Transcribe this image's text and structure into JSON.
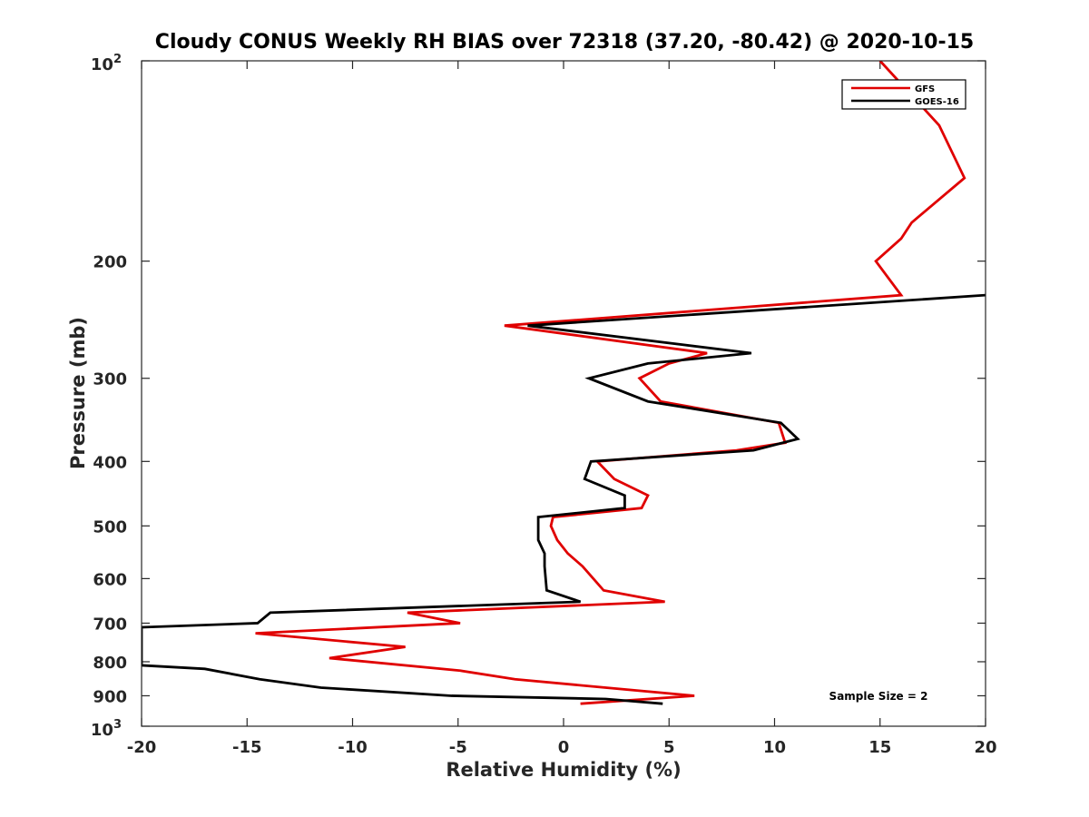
{
  "chart_data": {
    "type": "line",
    "title": "Cloudy CONUS Weekly RH BIAS over 72318 (37.20, -80.42) @ 2020-10-15",
    "xlabel": "Relative Humidity (%)",
    "ylabel": "Pressure (mb)",
    "xlim": [
      -20,
      20
    ],
    "ylim": [
      100,
      1000
    ],
    "yscale": "log",
    "y_reversed": true,
    "x_ticks": [
      -20,
      -15,
      -10,
      -5,
      0,
      5,
      10,
      15,
      20
    ],
    "x_tick_labels": [
      "-20",
      "-15",
      "-10",
      "-5",
      "0",
      "5",
      "10",
      "15",
      "20"
    ],
    "y_ticks": [
      200,
      300,
      400,
      500,
      600,
      700,
      800,
      900
    ],
    "y_tick_labels": [
      "200",
      "300",
      "400",
      "500",
      "600",
      "700",
      "800",
      "900"
    ],
    "y_top_label": {
      "base": "10",
      "exp": "2"
    },
    "y_bottom_label": {
      "base": "10",
      "exp": "3"
    },
    "legend_position": "top-right",
    "annotation": "Sample Size = 2",
    "series": [
      {
        "name": "GFS",
        "color": "#e00000",
        "points": [
          [
            15.0,
            100
          ],
          [
            17.8,
            125
          ],
          [
            19.0,
            150
          ],
          [
            16.5,
            175
          ],
          [
            16.0,
            185
          ],
          [
            14.8,
            200
          ],
          [
            16.0,
            225
          ],
          [
            -2.8,
            250
          ],
          [
            6.8,
            275
          ],
          [
            5.0,
            285
          ],
          [
            3.6,
            300
          ],
          [
            4.6,
            325
          ],
          [
            10.2,
            350
          ],
          [
            10.5,
            375
          ],
          [
            8.2,
            385
          ],
          [
            1.6,
            400
          ],
          [
            2.4,
            425
          ],
          [
            4.0,
            450
          ],
          [
            3.7,
            470
          ],
          [
            -0.5,
            485
          ],
          [
            -0.6,
            500
          ],
          [
            -0.3,
            525
          ],
          [
            0.2,
            550
          ],
          [
            0.9,
            575
          ],
          [
            1.9,
            625
          ],
          [
            4.8,
            650
          ],
          [
            -7.4,
            675
          ],
          [
            -4.9,
            700
          ],
          [
            -14.6,
            725
          ],
          [
            -7.5,
            760
          ],
          [
            -11.1,
            790
          ],
          [
            -4.9,
            825
          ],
          [
            -2.3,
            850
          ],
          [
            2.0,
            875
          ],
          [
            6.2,
            900
          ],
          [
            0.8,
            925
          ]
        ]
      },
      {
        "name": "GOES-16",
        "color": "#000000",
        "points": [
          [
            20.0,
            225
          ],
          [
            -1.7,
            250
          ],
          [
            8.9,
            275
          ],
          [
            4.0,
            285
          ],
          [
            1.2,
            300
          ],
          [
            4.0,
            325
          ],
          [
            10.3,
            350
          ],
          [
            11.1,
            370
          ],
          [
            9.0,
            385
          ],
          [
            1.3,
            400
          ],
          [
            1.0,
            425
          ],
          [
            2.9,
            450
          ],
          [
            2.9,
            470
          ],
          [
            -1.2,
            485
          ],
          [
            -1.2,
            500
          ],
          [
            -1.2,
            525
          ],
          [
            -0.9,
            550
          ],
          [
            -0.9,
            575
          ],
          [
            -0.8,
            625
          ],
          [
            0.8,
            650
          ],
          [
            -13.9,
            675
          ],
          [
            -14.5,
            700
          ],
          [
            -20.0,
            710
          ],
          [
            -20.0,
            810
          ],
          [
            -17.0,
            820
          ],
          [
            -14.4,
            850
          ],
          [
            -11.5,
            875
          ],
          [
            -5.3,
            900
          ],
          [
            2.0,
            910
          ],
          [
            4.7,
            925
          ]
        ]
      }
    ]
  }
}
